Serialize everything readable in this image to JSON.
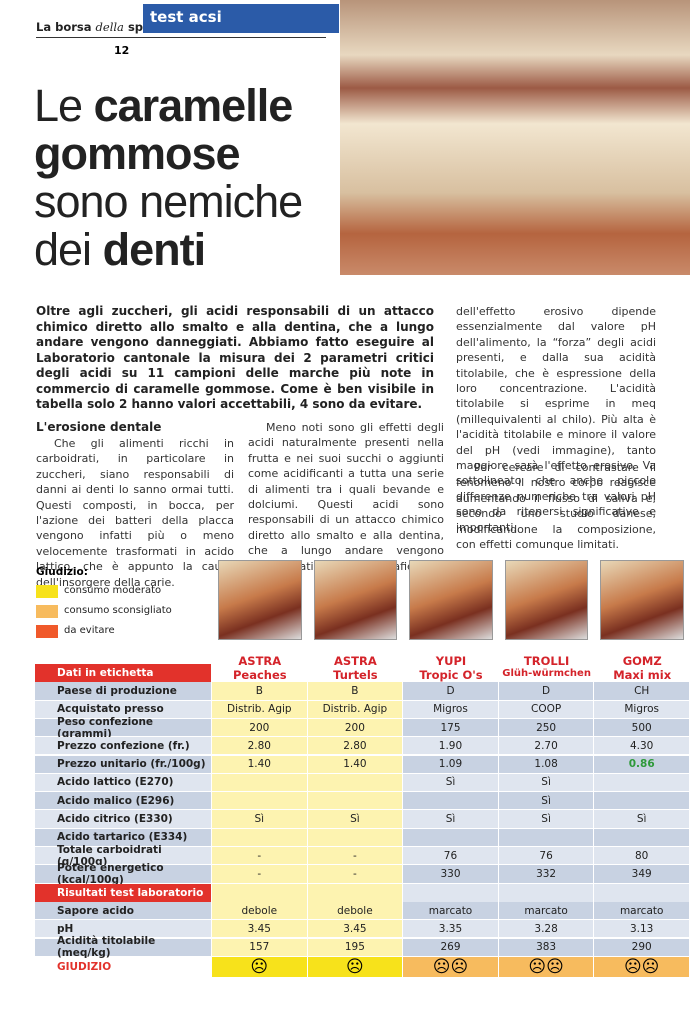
{
  "header": {
    "magazine": {
      "a": "La borsa",
      "b": "della",
      "c": "spesa"
    },
    "page": "12",
    "section": "test acsi"
  },
  "title": [
    {
      "light": "Le",
      "bold": "caramelle"
    },
    {
      "bold": "gommose"
    },
    {
      "light": "sono nemiche"
    },
    {
      "light": "dei",
      "bold": "denti"
    }
  ],
  "lead": "Oltre agli zuccheri, gli acidi responsabili di un attacco chimico diretto allo smalto e alla dentina, che a lungo andare vengono danneggiati. Abbiamo fatto eseguire al Laboratorio cantonale la misura dei 2 parametri critici degli acidi su 11 campioni delle marche più note in commercio di caramelle gommose. Come è ben visibile in tabella solo 2 hanno valori accettabili, 4 sono da evitare.",
  "subheading": "L'erosione dentale",
  "columns": [
    "Che gli alimenti ricchi in carboidrati, in particolare in zuccheri, siano responsabili di danni ai denti lo sanno ormai tutti. Questi composti, in bocca, per l'azione dei batteri della placca vengono infatti più o meno velocemente trasformati in acido lattico, che è appunto la causa dell'insorgere della carie.",
    "Meno noti sono gli effetti degli acidi naturalmente presenti nella frutta e nei suoi succhi o aggiunti come acidificanti a tutta una serie di alimenti tra i quali bevande e dolciumi. Questi acidi sono responsabili di un attacco chimico diretto allo smalto e alla dentina, che a lungo andare vengono danneggiati (vedi fotografie). La portata",
    "dell'effetto erosivo dipende essenzialmente dal valore pH dell'alimento, la “forza” degli acidi presenti, e dalla sua acidità titolabile, che è espressione della loro concentrazione. L'acidità titolabile si esprime in meq (millequivalenti al chilo). Più alta è l'acidità titolabile e minore il valore del pH (vedi immagine), tanto maggiore sarà l'effetto erosivo. Va sottolineato che anche piccole differenze numeriche tra valori pH sono da ritenersi significative e importanti.",
    "Per cercare di contrastare il fenomeno il nostro corpo reagisce aumentando il flusso di saliva e, secondo uno studio danese, modificandone la composizione, con effetti comunque limitati."
  ],
  "legend": {
    "title": "Giudizio:",
    "items": [
      {
        "label": "consumo moderato",
        "color": "#f7e21b"
      },
      {
        "label": "consumo sconsigliato",
        "color": "#f7bb5e"
      },
      {
        "label": "da evitare",
        "color": "#f0592a"
      }
    ]
  },
  "table": {
    "products": [
      {
        "brand": "ASTRA",
        "name": "Peaches",
        "rating": 0
      },
      {
        "brand": "ASTRA",
        "name": "Turtels",
        "rating": 0
      },
      {
        "brand": "YUPI",
        "name": "Tropic O's",
        "rating": 1
      },
      {
        "brand": "TROLLI",
        "name": "Glüh-würmchen",
        "rating": 1
      },
      {
        "brand": "GOMZ",
        "name": "Maxi mix",
        "rating": 1
      }
    ],
    "sections": [
      {
        "title": "Dati in etichetta",
        "rows": [
          [
            "Paese di produzione",
            "B",
            "B",
            "D",
            "D",
            "CH"
          ],
          [
            "Acquistato presso",
            "Distrib. Agip",
            "Distrib. Agip",
            "Migros",
            "COOP",
            "Migros"
          ],
          [
            "Peso confezione (grammi)",
            "200",
            "200",
            "175",
            "250",
            "500"
          ],
          [
            "Prezzo confezione (fr.)",
            "2.80",
            "2.80",
            "1.90",
            "2.70",
            "4.30"
          ],
          [
            "Prezzo unitario (fr./100g)",
            "1.40",
            "1.40",
            "1.09",
            "1.08",
            {
              "text": "0.86",
              "color": "#2f9a3b"
            }
          ],
          [
            "Acido lattico (E270)",
            null,
            null,
            "Sì",
            "Sì",
            null
          ],
          [
            "Acido malico (E296)",
            null,
            null,
            null,
            "Sì",
            null
          ],
          [
            "Acido citrico (E330)",
            "Sì",
            "Sì",
            "Sì",
            "Sì",
            "Sì"
          ],
          [
            "Acido tartarico (E334)",
            null,
            null,
            null,
            null,
            null
          ],
          [
            "Totale carboidrati (g/100g)",
            "-",
            "-",
            "76",
            "76",
            "80"
          ],
          [
            "Potere energetico (kcal/100g)",
            "-",
            "-",
            "330",
            "332",
            "349"
          ]
        ]
      },
      {
        "title": "Risultati test laboratorio",
        "rows": [
          [
            "Sapore acido",
            "debole",
            "debole",
            "marcato",
            "marcato",
            "marcato"
          ],
          [
            "pH",
            "3.45",
            "3.45",
            "3.35",
            "3.28",
            "3.13"
          ],
          [
            "Acidità titolabile (meq/kg)",
            "157",
            "195",
            "269",
            "383",
            "290"
          ]
        ]
      }
    ],
    "verdict": {
      "label": "GIUDIZIO",
      "faces": [
        "☹",
        "☹",
        "☹☹",
        "☹☹",
        "☹☹"
      ]
    }
  }
}
